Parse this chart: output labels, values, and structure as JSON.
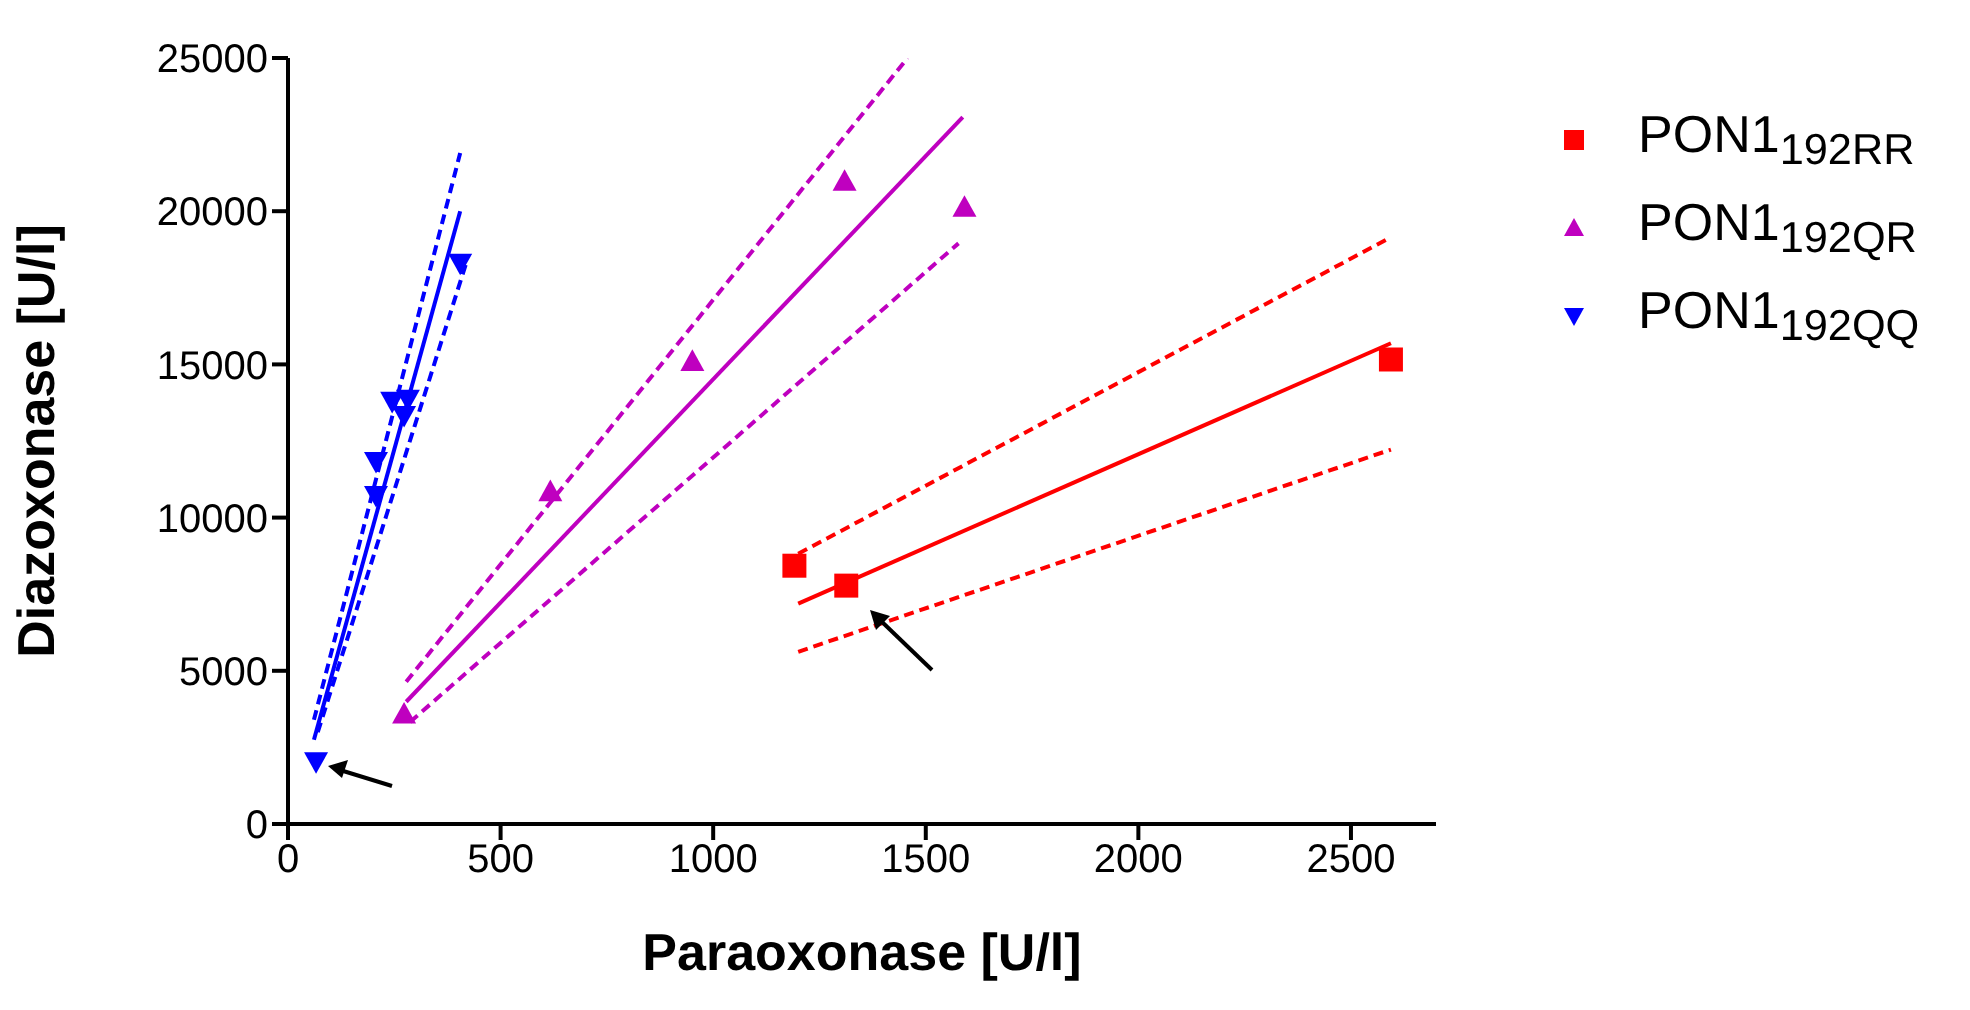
{
  "chart_data": {
    "type": "scatter",
    "xlabel": "Paraoxonase [U/l]",
    "ylabel": "Diazoxonase [U/l]",
    "xlim": [
      0,
      2700
    ],
    "ylim": [
      0,
      25000
    ],
    "xticks": [
      0,
      500,
      1000,
      1500,
      2000,
      2500
    ],
    "yticks": [
      0,
      5000,
      10000,
      15000,
      20000,
      25000
    ],
    "grid": false,
    "legend": "top right",
    "series": [
      {
        "type": "line",
        "color": "#ff0000",
        "line_style": "solid",
        "marker": "none",
        "x": [
          1200,
          2594
        ],
        "values": [
          7190,
          15690
        ]
      },
      {
        "type": "line",
        "color": "#ff0000",
        "line_style": "dashed",
        "marker": "none",
        "x": [
          1200,
          2594
        ],
        "values": [
          8820,
          19150
        ]
      },
      {
        "type": "line",
        "color": "#ff0000",
        "line_style": "dashed",
        "marker": "none",
        "x": [
          1200,
          2594
        ],
        "values": [
          5620,
          12220
        ]
      },
      {
        "type": "line",
        "color": "#bf00bf",
        "line_style": "solid",
        "marker": "none",
        "x": [
          278,
          1587
        ],
        "values": [
          3990,
          23070
        ]
      },
      {
        "type": "line",
        "color": "#bf00bf",
        "line_style": "dashed",
        "marker": "none",
        "x": [
          278,
          1457
        ],
        "values": [
          4640,
          25000
        ]
      },
      {
        "type": "line",
        "color": "#bf00bf",
        "line_style": "dashed",
        "marker": "none",
        "x": [
          287,
          1577
        ],
        "values": [
          3330,
          18950
        ]
      },
      {
        "type": "line",
        "color": "#0000ff",
        "line_style": "solid",
        "marker": "none",
        "x": [
          61,
          405
        ],
        "values": [
          2750,
          20000
        ]
      },
      {
        "type": "line",
        "color": "#0000ff",
        "line_style": "dashed",
        "marker": "none",
        "x": [
          61,
          405
        ],
        "values": [
          3400,
          21900
        ]
      },
      {
        "type": "line",
        "color": "#0000ff",
        "line_style": "dashed",
        "marker": "none",
        "x": [
          70,
          419
        ],
        "values": [
          3000,
          18300
        ]
      },
      {
        "name": "PON1$_{192RR}$",
        "color": "#ff0000",
        "marker": "square",
        "x": [
          1191,
          1313,
          2594
        ],
        "values": [
          8430,
          7780,
          15160
        ]
      },
      {
        "name": "PON1$_{192QR}$",
        "color": "#bf00bf",
        "marker": "triangle",
        "x": [
          273,
          617,
          951,
          1309,
          1591
        ],
        "values": [
          3590,
          10850,
          15100,
          20980,
          20130
        ]
      },
      {
        "name": "PON1$_{192QQ}$",
        "color": "#0000ff",
        "marker": "triangle-down",
        "x": [
          66,
          207,
          207,
          245,
          282,
          273,
          405
        ],
        "values": [
          2030,
          11830,
          10720,
          13790,
          13860,
          13330,
          18300
        ]
      }
    ]
  }
}
